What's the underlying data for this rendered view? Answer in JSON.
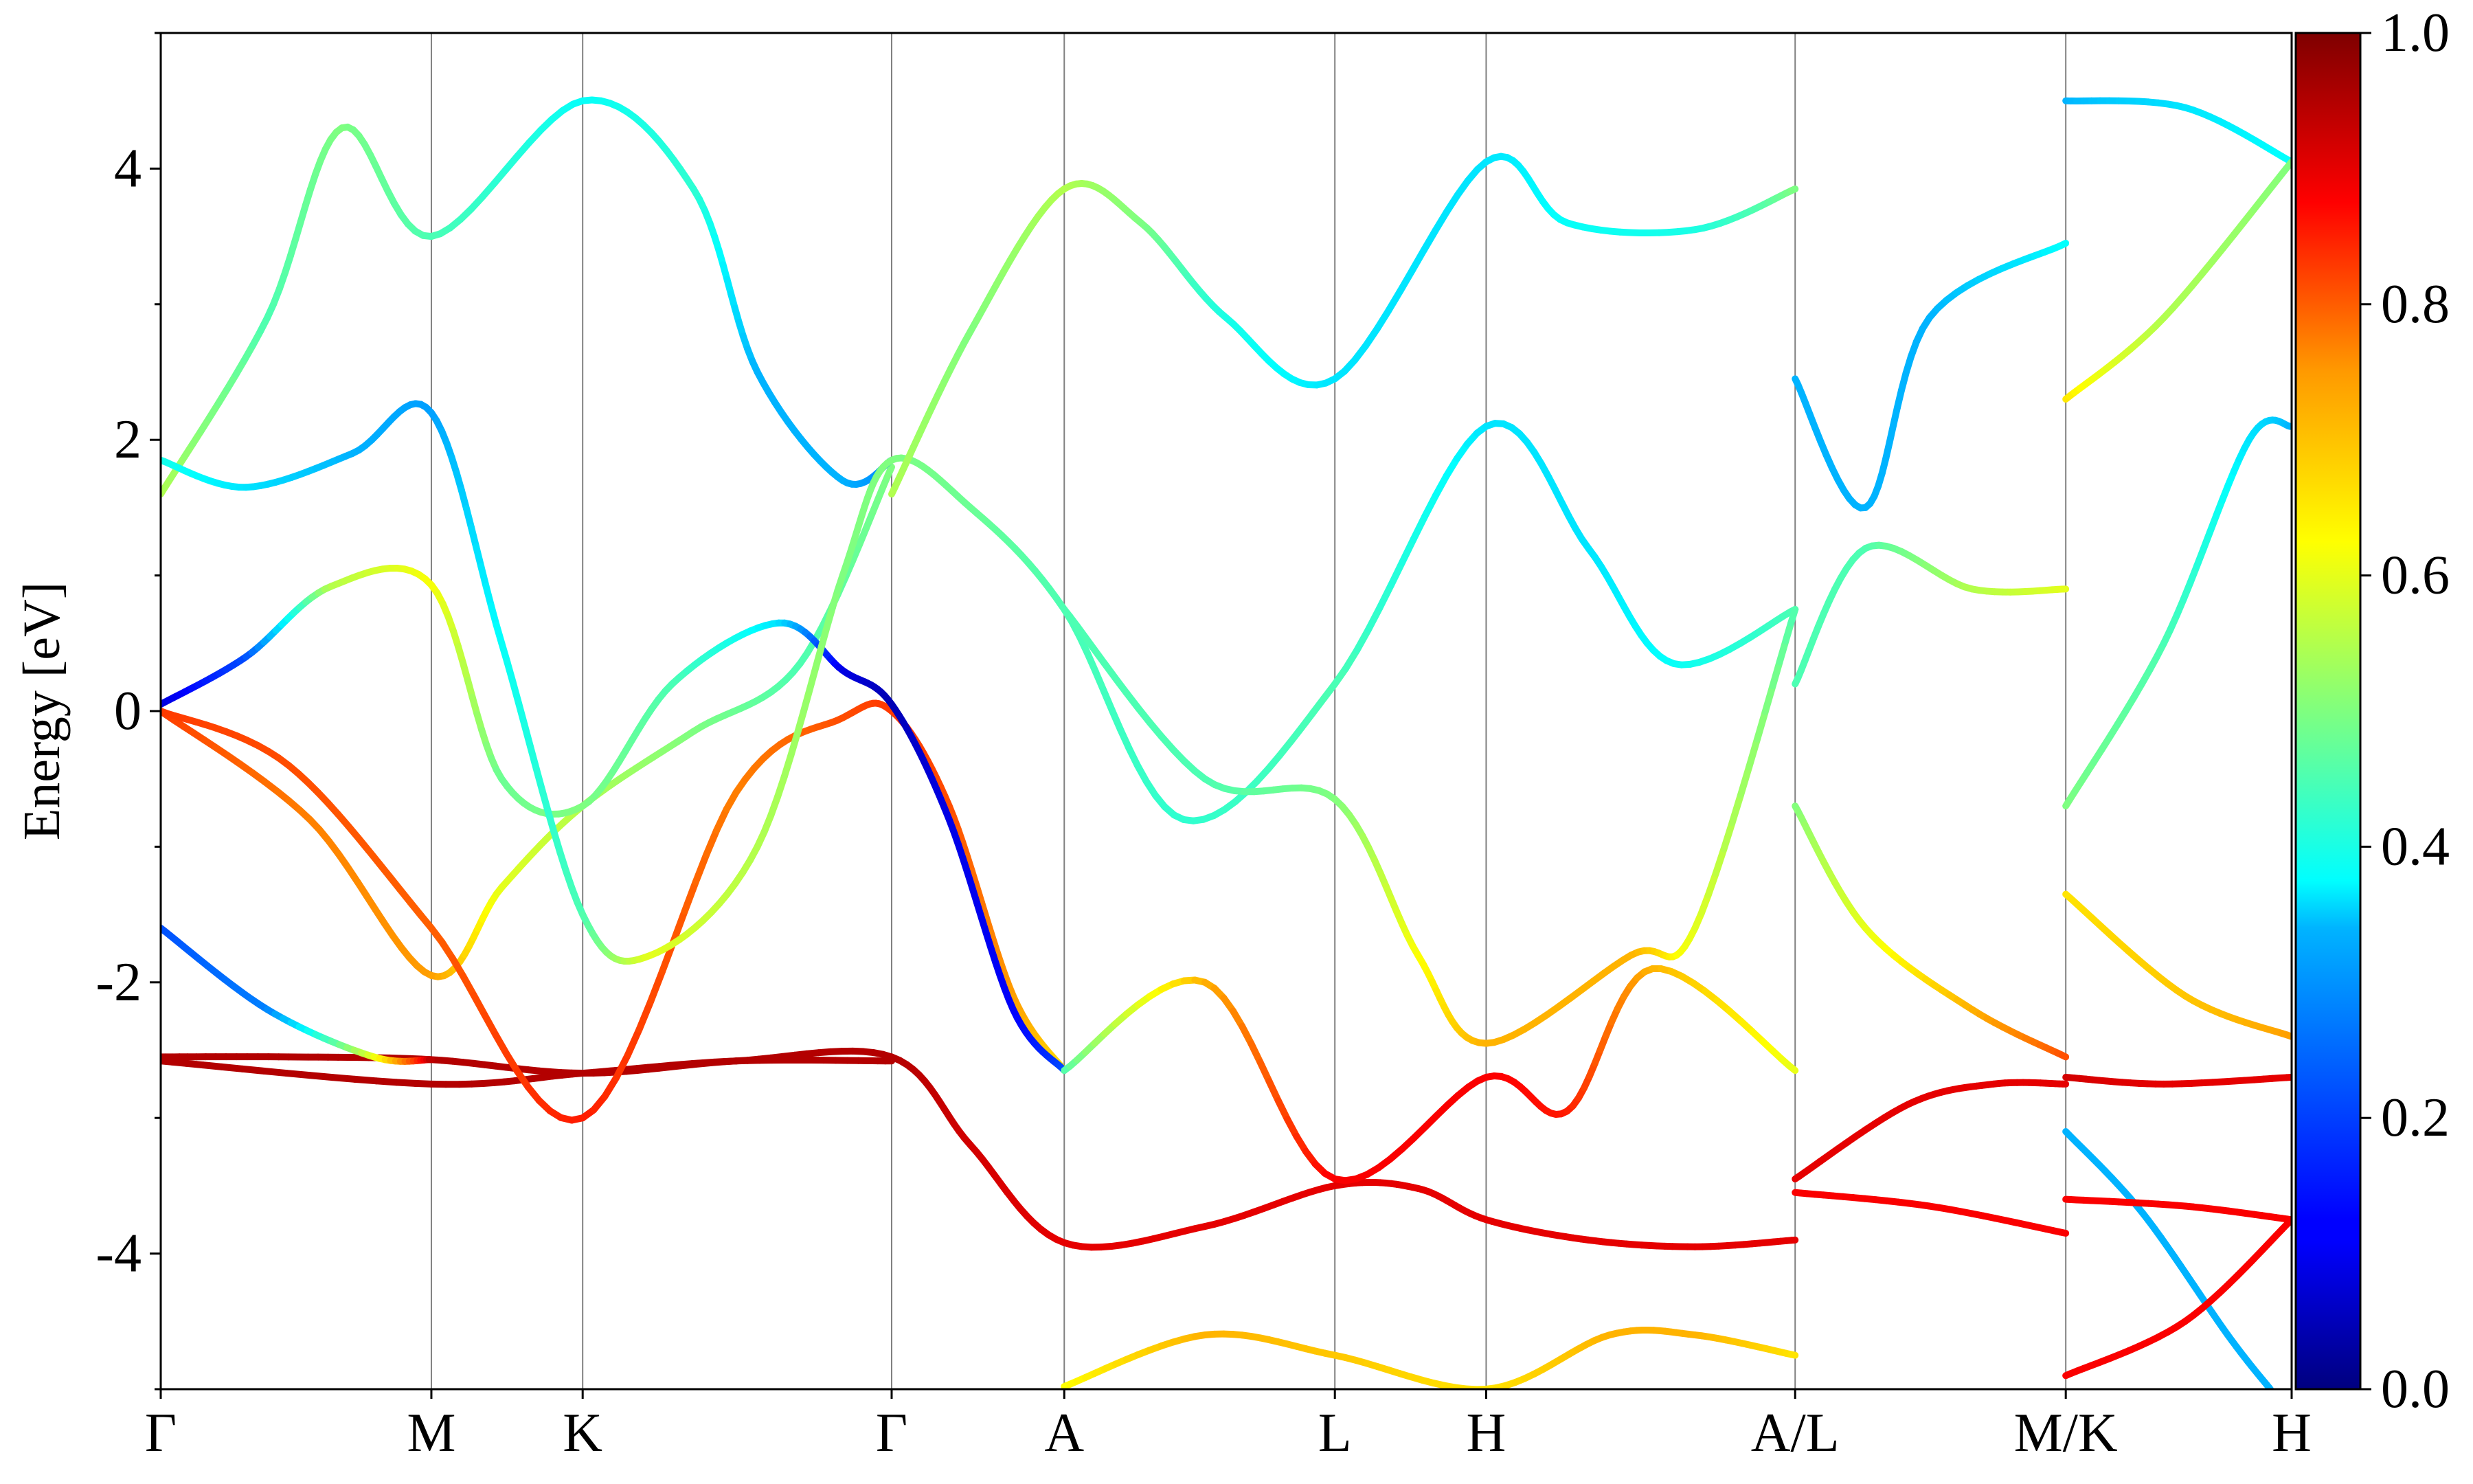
{
  "chart_data": {
    "type": "line",
    "title": "",
    "xlabel": "",
    "ylabel": "Energy [eV]",
    "ylim": [
      -5,
      5
    ],
    "yticks": [
      -4,
      -2,
      0,
      2,
      4
    ],
    "ytick_labels": [
      "-4",
      "-2",
      "0",
      "2",
      "4"
    ],
    "xlim": [
      0,
      10
    ],
    "kpoints": [
      {
        "label": "Γ",
        "x": 0.0
      },
      {
        "label": "M",
        "x": 1.27
      },
      {
        "label": "K",
        "x": 1.98
      },
      {
        "label": "Γ",
        "x": 3.43
      },
      {
        "label": "A",
        "x": 4.24
      },
      {
        "label": "L",
        "x": 5.51
      },
      {
        "label": "H",
        "x": 6.22
      },
      {
        "label": "A/L",
        "x": 7.67
      },
      {
        "label": "M/K",
        "x": 8.94
      },
      {
        "label": "H",
        "x": 10.0
      }
    ],
    "colorbar": {
      "colormap": "jet",
      "range": [
        0.0,
        1.0
      ],
      "ticks": [
        0.0,
        0.2,
        0.4,
        0.6,
        0.8,
        1.0
      ],
      "tick_labels": [
        "0.0",
        "0.2",
        "0.4",
        "0.6",
        "0.8",
        "1.0"
      ]
    },
    "series": [
      {
        "points": [
          [
            0,
            -2.55,
            0.95
          ],
          [
            0.6,
            -2.55,
            0.95
          ],
          [
            1.27,
            -2.57,
            0.95
          ],
          [
            1.98,
            -2.67,
            0.95
          ],
          [
            2.7,
            -2.58,
            0.95
          ],
          [
            3.43,
            -2.55,
            0.95
          ],
          [
            3.8,
            -3.2,
            0.92
          ],
          [
            4.24,
            -3.92,
            0.9
          ],
          [
            4.9,
            -3.8,
            0.9
          ],
          [
            5.51,
            -3.5,
            0.9
          ],
          [
            5.9,
            -3.52,
            0.9
          ],
          [
            6.22,
            -3.75,
            0.9
          ],
          [
            6.7,
            -3.9,
            0.9
          ],
          [
            7.2,
            -3.95,
            0.9
          ],
          [
            7.67,
            -3.9,
            0.9
          ]
        ]
      },
      {
        "points": [
          [
            0,
            -2.58,
            0.95
          ],
          [
            1.27,
            -2.75,
            0.95
          ],
          [
            1.98,
            -2.67,
            0.95
          ],
          [
            2.7,
            -2.58,
            0.95
          ],
          [
            3.43,
            -2.58,
            0.95
          ]
        ]
      },
      {
        "points": [
          [
            0,
            0.0,
            0.82
          ],
          [
            0.7,
            -0.8,
            0.75
          ],
          [
            1.27,
            -1.95,
            0.72
          ],
          [
            1.6,
            -1.3,
            0.6
          ],
          [
            1.98,
            -0.7,
            0.55
          ],
          [
            2.5,
            -0.15,
            0.5
          ],
          [
            3.0,
            0.35,
            0.45
          ],
          [
            3.43,
            1.8,
            0.5
          ]
        ]
      },
      {
        "points": [
          [
            0,
            0.0,
            0.82
          ],
          [
            0.6,
            -0.4,
            0.8
          ],
          [
            1.27,
            -1.6,
            0.78
          ],
          [
            1.98,
            -3.0,
            0.85
          ],
          [
            2.7,
            -0.6,
            0.75
          ],
          [
            3.2,
            -0.05,
            0.8
          ],
          [
            3.43,
            0.0,
            0.82
          ],
          [
            3.7,
            -0.7,
            0.8
          ],
          [
            4.0,
            -2.1,
            0.72
          ],
          [
            4.24,
            -2.65,
            0.65
          ]
        ]
      },
      {
        "points": [
          [
            0,
            0.05,
            0.08
          ],
          [
            0.4,
            0.4,
            0.2
          ],
          [
            0.8,
            0.92,
            0.55
          ],
          [
            1.27,
            0.93,
            0.62
          ],
          [
            1.6,
            -0.5,
            0.48
          ],
          [
            1.98,
            -0.7,
            0.5
          ],
          [
            2.4,
            0.2,
            0.45
          ],
          [
            2.9,
            0.65,
            0.35
          ],
          [
            3.2,
            0.3,
            0.1
          ],
          [
            3.43,
            0.05,
            0.05
          ],
          [
            3.7,
            -0.8,
            0.1
          ],
          [
            4.0,
            -2.2,
            0.12
          ],
          [
            4.24,
            -2.65,
            0.2
          ]
        ]
      },
      {
        "points": [
          [
            0,
            -1.6,
            0.2
          ],
          [
            0.5,
            -2.2,
            0.25
          ],
          [
            1.0,
            -2.55,
            0.6
          ],
          [
            1.27,
            -2.57,
            0.95
          ]
        ]
      },
      {
        "points": [
          [
            0,
            1.6,
            0.55
          ],
          [
            0.5,
            2.9,
            0.45
          ],
          [
            0.85,
            4.3,
            0.5
          ],
          [
            1.27,
            3.5,
            0.45
          ],
          [
            1.98,
            4.5,
            0.38
          ],
          [
            2.5,
            3.85,
            0.42
          ],
          [
            2.8,
            2.5,
            0.3
          ],
          [
            3.2,
            1.7,
            0.3
          ],
          [
            3.43,
            1.85,
            0.25
          ]
        ]
      },
      {
        "points": [
          [
            0,
            1.85,
            0.4
          ],
          [
            0.4,
            1.65,
            0.35
          ],
          [
            0.9,
            1.9,
            0.3
          ],
          [
            1.27,
            2.2,
            0.28
          ],
          [
            1.6,
            0.5,
            0.38
          ],
          [
            1.98,
            -1.5,
            0.45
          ],
          [
            2.3,
            -1.8,
            0.6
          ],
          [
            2.8,
            -1.0,
            0.55
          ],
          [
            3.2,
            1.0,
            0.5
          ],
          [
            3.43,
            1.85,
            0.5
          ],
          [
            3.8,
            1.5,
            0.48
          ],
          [
            4.24,
            0.75,
            0.45
          ],
          [
            4.8,
            -0.8,
            0.42
          ],
          [
            5.51,
            0.2,
            0.45
          ],
          [
            6.22,
            2.1,
            0.35
          ],
          [
            6.7,
            1.2,
            0.35
          ],
          [
            7.1,
            0.35,
            0.38
          ],
          [
            7.67,
            0.75,
            0.45
          ]
        ]
      },
      {
        "points": [
          [
            3.43,
            1.6,
            0.55
          ],
          [
            3.8,
            2.8,
            0.5
          ],
          [
            4.24,
            3.85,
            0.55
          ],
          [
            4.6,
            3.6,
            0.5
          ],
          [
            5.0,
            2.9,
            0.4
          ],
          [
            5.51,
            2.45,
            0.35
          ],
          [
            6.22,
            4.05,
            0.35
          ],
          [
            6.6,
            3.6,
            0.38
          ],
          [
            7.2,
            3.55,
            0.4
          ],
          [
            7.67,
            3.85,
            0.5
          ]
        ]
      },
      {
        "points": [
          [
            4.24,
            0.75,
            0.45
          ],
          [
            4.9,
            -0.5,
            0.45
          ],
          [
            5.51,
            -0.65,
            0.5
          ],
          [
            5.9,
            -1.8,
            0.62
          ],
          [
            6.22,
            -2.45,
            0.7
          ],
          [
            6.9,
            -1.8,
            0.7
          ],
          [
            7.2,
            -1.6,
            0.6
          ],
          [
            7.67,
            0.75,
            0.45
          ]
        ]
      },
      {
        "points": [
          [
            4.24,
            -2.65,
            0.45
          ],
          [
            4.9,
            -2.0,
            0.7
          ],
          [
            5.51,
            -3.45,
            0.88
          ],
          [
            6.22,
            -2.7,
            0.88
          ],
          [
            6.6,
            -2.95,
            0.85
          ],
          [
            7.0,
            -1.9,
            0.7
          ],
          [
            7.67,
            -2.65,
            0.6
          ]
        ]
      },
      {
        "points": [
          [
            4.24,
            -4.98,
            0.62
          ],
          [
            4.9,
            -4.6,
            0.7
          ],
          [
            5.51,
            -4.75,
            0.68
          ],
          [
            6.22,
            -5.0,
            0.65
          ],
          [
            6.8,
            -4.6,
            0.7
          ],
          [
            7.2,
            -4.6,
            0.7
          ],
          [
            7.67,
            -4.75,
            0.65
          ]
        ]
      },
      {
        "points": [
          [
            7.67,
            2.45,
            0.3
          ],
          [
            8.0,
            1.5,
            0.3
          ],
          [
            8.3,
            2.9,
            0.3
          ],
          [
            8.94,
            3.45,
            0.38
          ]
        ]
      },
      {
        "points": [
          [
            7.67,
            0.2,
            0.45
          ],
          [
            8.0,
            1.2,
            0.45
          ],
          [
            8.5,
            0.9,
            0.55
          ],
          [
            8.94,
            0.9,
            0.6
          ]
        ]
      },
      {
        "points": [
          [
            7.67,
            -0.7,
            0.5
          ],
          [
            8.0,
            -1.6,
            0.6
          ],
          [
            8.5,
            -2.2,
            0.7
          ],
          [
            8.94,
            -2.55,
            0.8
          ]
        ]
      },
      {
        "points": [
          [
            7.67,
            -3.45,
            0.9
          ],
          [
            8.2,
            -2.9,
            0.9
          ],
          [
            8.6,
            -2.75,
            0.9
          ],
          [
            8.94,
            -2.75,
            0.9
          ]
        ]
      },
      {
        "points": [
          [
            7.67,
            -3.55,
            0.88
          ],
          [
            8.3,
            -3.65,
            0.88
          ],
          [
            8.94,
            -3.85,
            0.88
          ]
        ]
      },
      {
        "points": [
          [
            8.94,
            4.5,
            0.3
          ],
          [
            9.5,
            4.45,
            0.35
          ],
          [
            10.0,
            4.05,
            0.38
          ]
        ]
      },
      {
        "points": [
          [
            8.94,
            2.3,
            0.65
          ],
          [
            9.4,
            2.9,
            0.55
          ],
          [
            10.0,
            4.05,
            0.5
          ]
        ]
      },
      {
        "points": [
          [
            8.94,
            -0.7,
            0.5
          ],
          [
            9.4,
            0.5,
            0.45
          ],
          [
            9.8,
            2.0,
            0.35
          ],
          [
            10.0,
            2.1,
            0.3
          ]
        ]
      },
      {
        "points": [
          [
            8.94,
            -1.35,
            0.65
          ],
          [
            9.5,
            -2.1,
            0.68
          ],
          [
            10.0,
            -2.4,
            0.72
          ]
        ]
      },
      {
        "points": [
          [
            8.94,
            -2.7,
            0.92
          ],
          [
            9.4,
            -2.75,
            0.9
          ],
          [
            10.0,
            -2.7,
            0.9
          ]
        ]
      },
      {
        "points": [
          [
            8.94,
            -3.1,
            0.3
          ],
          [
            9.3,
            -3.7,
            0.3
          ],
          [
            9.7,
            -4.6,
            0.3
          ],
          [
            9.9,
            -5.0,
            0.3
          ]
        ]
      },
      {
        "points": [
          [
            8.94,
            -4.9,
            0.88
          ],
          [
            9.5,
            -4.5,
            0.88
          ],
          [
            10.0,
            -3.75,
            0.88
          ]
        ]
      },
      {
        "points": [
          [
            8.94,
            -3.6,
            0.88
          ],
          [
            9.5,
            -3.65,
            0.88
          ],
          [
            10.0,
            -3.75,
            0.88
          ]
        ]
      }
    ]
  }
}
